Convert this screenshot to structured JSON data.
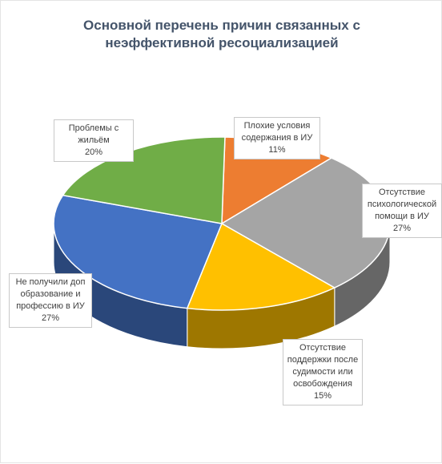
{
  "chart_data": {
    "type": "pie",
    "title": "Основной перечень причин связанных с неэффективной ресоциализацией",
    "slices": [
      {
        "label": "Плохие условия содержания в ИУ",
        "value": 11,
        "value_label": "11%",
        "color": "#ed7d31"
      },
      {
        "label": "Отсутствие психологической помощи в ИУ",
        "value": 27,
        "value_label": "27%",
        "color": "#a5a5a5"
      },
      {
        "label": "Отсутствие поддержки после судимости или освобождения",
        "value": 15,
        "value_label": "15%",
        "color": "#ffc000"
      },
      {
        "label": "Не получили доп образование и профессию в ИУ",
        "value": 27,
        "value_label": "27%",
        "color": "#4472c4"
      },
      {
        "label": "Проблемы с жильём",
        "value": 20,
        "value_label": "20%",
        "color": "#70ad47"
      }
    ]
  },
  "callouts": [
    {
      "text": "Плохие условия содержания в ИУ",
      "pct": "11%"
    },
    {
      "text": "Отсутствие психологической помощи в ИУ",
      "pct": "27%"
    },
    {
      "text": "Отсутствие поддержки после судимости или освобождения",
      "pct": "15%"
    },
    {
      "text": "Не получили доп образование и профессию в ИУ",
      "pct": "27%"
    },
    {
      "text": "Проблемы с жильём",
      "pct": "20%"
    }
  ]
}
